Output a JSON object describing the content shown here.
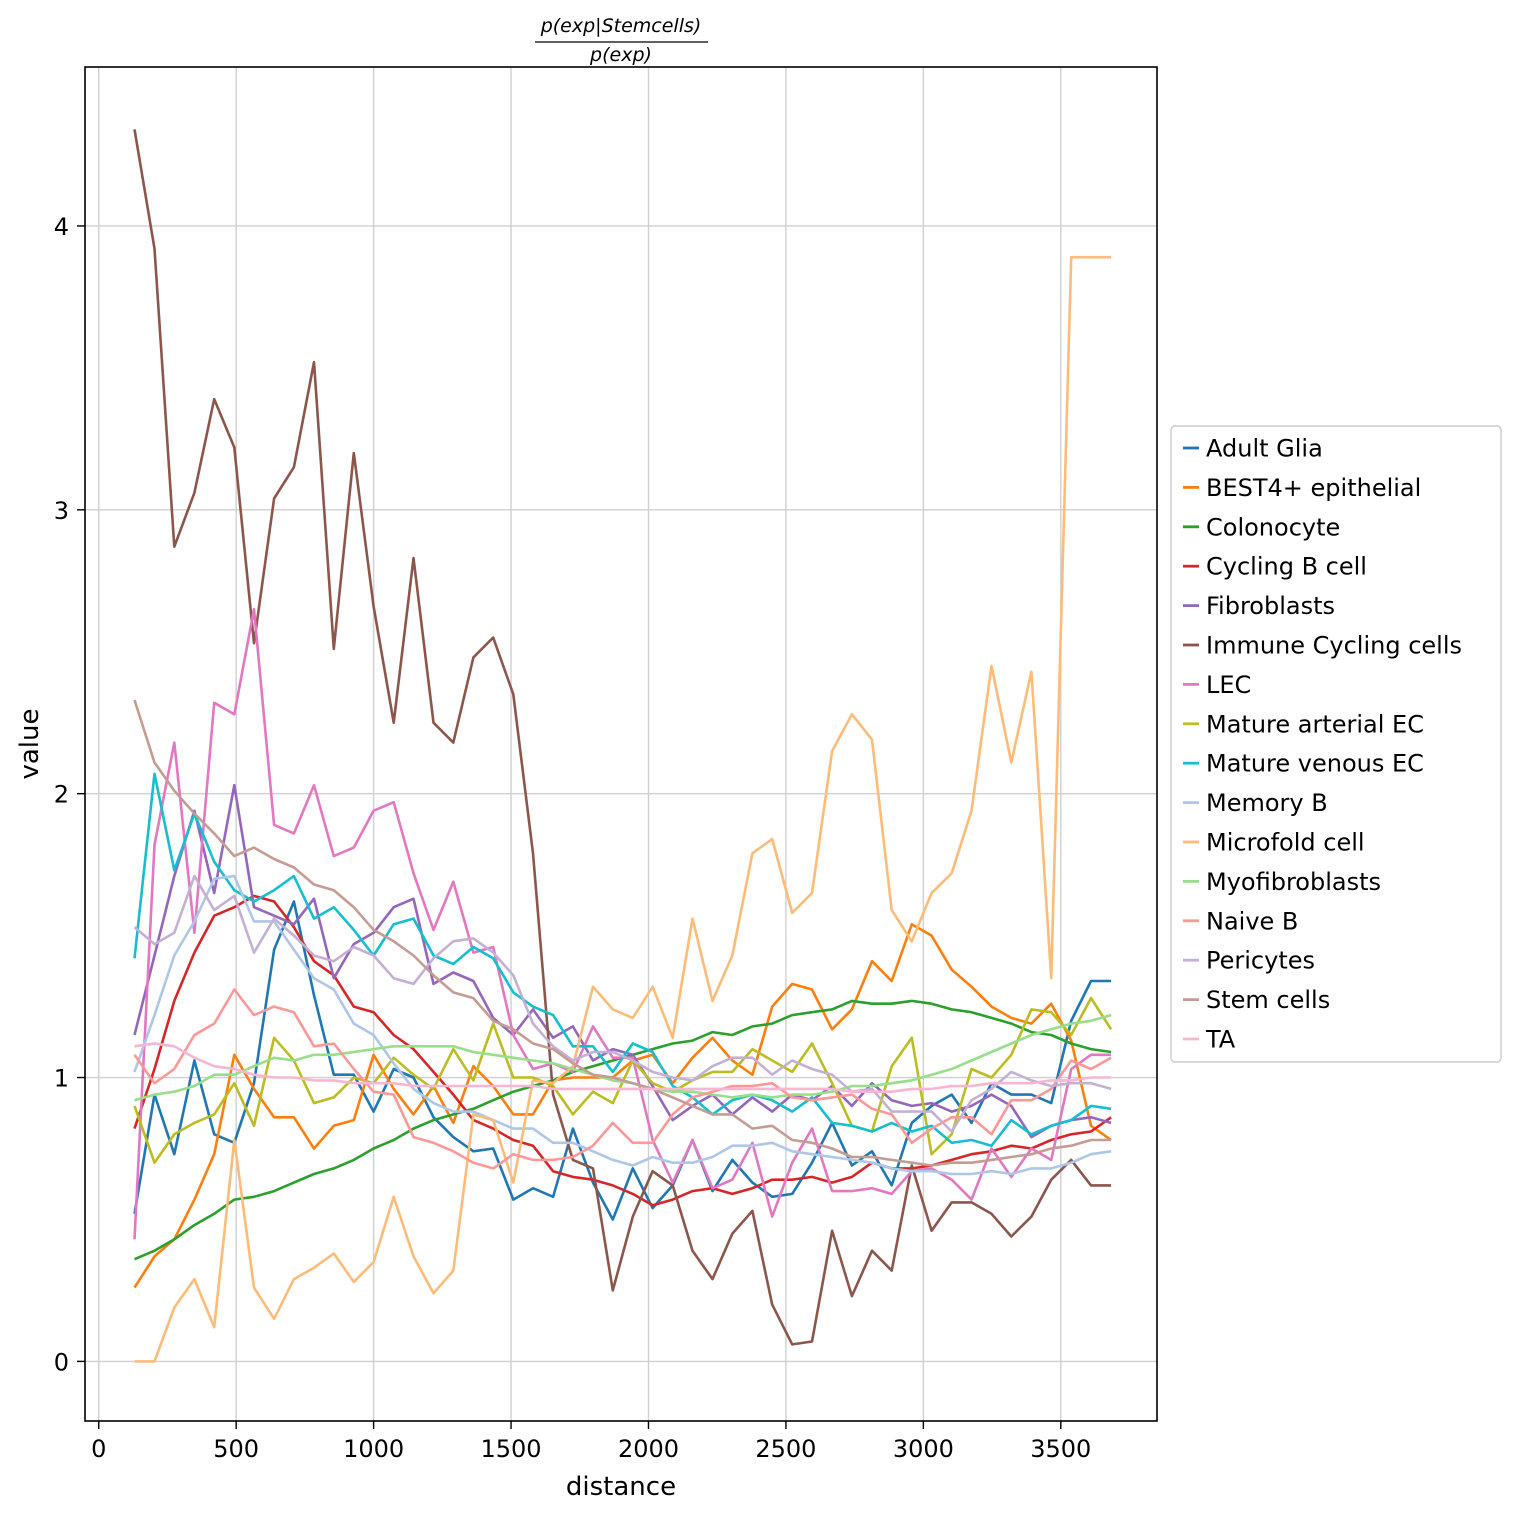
{
  "chart_data": {
    "type": "line",
    "title": {
      "numerator": "p(exp|Stemcells)",
      "denominator": "p(exp)"
    },
    "xlabel": "distance",
    "ylabel": "value",
    "xlim": [
      -50,
      3850
    ],
    "ylim": [
      -0.21,
      4.56
    ],
    "xticks": [
      0,
      500,
      1000,
      1500,
      2000,
      2500,
      3000,
      3500
    ],
    "yticks": [
      0,
      1,
      2,
      3,
      4
    ],
    "grid": true,
    "legend_position": "right",
    "x": [
      130,
      203,
      275,
      348,
      420,
      493,
      565,
      638,
      710,
      783,
      855,
      928,
      1000,
      1073,
      1145,
      1218,
      1290,
      1363,
      1435,
      1508,
      1580,
      1653,
      1725,
      1798,
      1870,
      1943,
      2015,
      2088,
      2160,
      2233,
      2305,
      2378,
      2450,
      2523,
      2595,
      2668,
      2740,
      2813,
      2885,
      2958,
      3030,
      3103,
      3175,
      3248,
      3320,
      3393,
      3465,
      3538,
      3610,
      3683
    ],
    "series": [
      {
        "name": "Adult Glia",
        "color": "#1f77b4",
        "values": [
          0.52,
          0.94,
          0.73,
          1.06,
          0.8,
          0.77,
          0.98,
          1.45,
          1.62,
          1.29,
          1.01,
          1.01,
          0.88,
          1.03,
          1.0,
          0.86,
          0.79,
          0.74,
          0.75,
          0.57,
          0.61,
          0.58,
          0.82,
          0.63,
          0.5,
          0.68,
          0.54,
          0.62,
          0.78,
          0.6,
          0.71,
          0.63,
          0.58,
          0.59,
          0.7,
          0.84,
          0.69,
          0.74,
          0.62,
          0.84,
          0.9,
          0.94,
          0.84,
          0.98,
          0.94,
          0.94,
          0.91,
          1.2,
          1.34,
          1.34
        ]
      },
      {
        "name": "BEST4+ epithelial",
        "color": "#ff7f0e",
        "values": [
          0.26,
          0.37,
          0.43,
          0.57,
          0.73,
          1.08,
          0.96,
          0.86,
          0.86,
          0.75,
          0.83,
          0.85,
          1.08,
          0.96,
          0.87,
          0.97,
          0.84,
          1.04,
          0.97,
          0.87,
          0.87,
          0.99,
          1.0,
          1.0,
          1.0,
          1.06,
          1.08,
          0.98,
          1.07,
          1.14,
          1.06,
          1.01,
          1.25,
          1.33,
          1.31,
          1.17,
          1.24,
          1.41,
          1.34,
          1.54,
          1.5,
          1.38,
          1.32,
          1.25,
          1.21,
          1.19,
          1.26,
          1.13,
          0.83,
          0.78
        ]
      },
      {
        "name": "Colonocyte",
        "color": "#2ca02c",
        "values": [
          0.36,
          0.39,
          0.43,
          0.48,
          0.52,
          0.57,
          0.58,
          0.6,
          0.63,
          0.66,
          0.68,
          0.71,
          0.75,
          0.78,
          0.82,
          0.85,
          0.87,
          0.89,
          0.92,
          0.95,
          0.97,
          0.99,
          1.02,
          1.04,
          1.06,
          1.08,
          1.1,
          1.12,
          1.13,
          1.16,
          1.15,
          1.18,
          1.19,
          1.22,
          1.23,
          1.24,
          1.27,
          1.26,
          1.26,
          1.27,
          1.26,
          1.24,
          1.23,
          1.21,
          1.19,
          1.16,
          1.15,
          1.12,
          1.1,
          1.09
        ]
      },
      {
        "name": "Cycling B cell",
        "color": "#d62728",
        "values": [
          0.82,
          1.03,
          1.27,
          1.44,
          1.57,
          1.6,
          1.64,
          1.62,
          1.53,
          1.41,
          1.36,
          1.25,
          1.23,
          1.15,
          1.1,
          1.02,
          0.94,
          0.85,
          0.82,
          0.78,
          0.76,
          0.67,
          0.65,
          0.64,
          0.62,
          0.59,
          0.55,
          0.57,
          0.6,
          0.61,
          0.59,
          0.61,
          0.64,
          0.64,
          0.65,
          0.63,
          0.65,
          0.7,
          0.68,
          0.68,
          0.69,
          0.71,
          0.73,
          0.74,
          0.76,
          0.75,
          0.78,
          0.8,
          0.81,
          0.86
        ]
      },
      {
        "name": "Fibroblasts",
        "color": "#9467bd",
        "values": [
          1.15,
          1.43,
          1.71,
          1.94,
          1.65,
          2.03,
          1.6,
          1.57,
          1.54,
          1.63,
          1.35,
          1.47,
          1.51,
          1.6,
          1.63,
          1.33,
          1.37,
          1.34,
          1.21,
          1.15,
          1.24,
          1.14,
          1.18,
          1.06,
          1.1,
          1.08,
          0.97,
          0.85,
          0.9,
          0.94,
          0.87,
          0.93,
          0.88,
          0.94,
          0.92,
          0.97,
          0.9,
          0.98,
          0.92,
          0.9,
          0.91,
          0.88,
          0.9,
          0.94,
          0.9,
          0.79,
          0.83,
          0.85,
          0.86,
          0.84
        ]
      },
      {
        "name": "Immune Cycling cells",
        "color": "#8c564b",
        "values": [
          4.34,
          3.92,
          2.87,
          3.06,
          3.39,
          3.22,
          2.53,
          3.04,
          3.15,
          3.52,
          2.51,
          3.2,
          2.66,
          2.25,
          2.83,
          2.25,
          2.18,
          2.48,
          2.55,
          2.35,
          1.79,
          0.94,
          0.71,
          0.68,
          0.25,
          0.51,
          0.67,
          0.62,
          0.39,
          0.29,
          0.45,
          0.53,
          0.2,
          0.06,
          0.07,
          0.46,
          0.23,
          0.39,
          0.32,
          0.69,
          0.46,
          0.56,
          0.56,
          0.52,
          0.44,
          0.51,
          0.64,
          0.71,
          0.62,
          0.62
        ]
      },
      {
        "name": "LEC",
        "color": "#e377c2",
        "values": [
          0.43,
          1.82,
          2.18,
          1.51,
          2.32,
          2.28,
          2.65,
          1.89,
          1.86,
          2.03,
          1.78,
          1.81,
          1.94,
          1.97,
          1.72,
          1.52,
          1.69,
          1.44,
          1.46,
          1.15,
          1.03,
          1.05,
          1.02,
          1.18,
          1.07,
          1.07,
          0.78,
          0.63,
          0.78,
          0.61,
          0.64,
          0.77,
          0.51,
          0.7,
          0.82,
          0.6,
          0.6,
          0.61,
          0.59,
          0.67,
          0.68,
          0.64,
          0.57,
          0.75,
          0.65,
          0.75,
          0.71,
          1.03,
          1.08,
          1.08
        ]
      },
      {
        "name": "Mature arterial EC",
        "color": "#bcbd22",
        "values": [
          0.9,
          0.7,
          0.8,
          0.84,
          0.87,
          0.98,
          0.83,
          1.14,
          1.06,
          0.91,
          0.93,
          1.0,
          0.98,
          1.07,
          1.01,
          0.96,
          1.1,
          0.99,
          1.19,
          1.0,
          1.0,
          0.97,
          0.87,
          0.95,
          0.91,
          1.06,
          0.98,
          0.95,
          0.99,
          1.02,
          1.02,
          1.1,
          1.06,
          1.02,
          1.12,
          0.98,
          0.83,
          0.81,
          1.04,
          1.14,
          0.73,
          0.8,
          1.03,
          1.0,
          1.08,
          1.24,
          1.23,
          1.15,
          1.28,
          1.17
        ]
      },
      {
        "name": "Mature venous EC",
        "color": "#17becf",
        "values": [
          1.42,
          2.07,
          1.73,
          1.93,
          1.76,
          1.66,
          1.62,
          1.66,
          1.71,
          1.56,
          1.6,
          1.52,
          1.43,
          1.54,
          1.56,
          1.43,
          1.4,
          1.46,
          1.42,
          1.3,
          1.25,
          1.22,
          1.11,
          1.11,
          1.02,
          1.12,
          1.09,
          0.97,
          0.93,
          0.87,
          0.92,
          0.94,
          0.92,
          0.88,
          0.93,
          0.84,
          0.83,
          0.81,
          0.84,
          0.81,
          0.83,
          0.77,
          0.78,
          0.76,
          0.85,
          0.8,
          0.83,
          0.85,
          0.9,
          0.89
        ]
      },
      {
        "name": "Memory B",
        "color": "#aec7e8",
        "values": [
          1.02,
          1.22,
          1.43,
          1.55,
          1.7,
          1.71,
          1.55,
          1.55,
          1.45,
          1.35,
          1.31,
          1.19,
          1.15,
          1.05,
          0.96,
          0.91,
          0.88,
          0.88,
          0.85,
          0.82,
          0.82,
          0.77,
          0.77,
          0.74,
          0.71,
          0.69,
          0.72,
          0.7,
          0.7,
          0.72,
          0.76,
          0.76,
          0.77,
          0.74,
          0.73,
          0.72,
          0.71,
          0.7,
          0.68,
          0.67,
          0.67,
          0.66,
          0.66,
          0.67,
          0.66,
          0.68,
          0.68,
          0.7,
          0.73,
          0.74
        ]
      },
      {
        "name": "Microfold cell",
        "color": "#ffbb78",
        "values": [
          0.0,
          0.0,
          0.19,
          0.29,
          0.12,
          0.78,
          0.26,
          0.15,
          0.29,
          0.33,
          0.38,
          0.28,
          0.35,
          0.58,
          0.37,
          0.24,
          0.32,
          0.87,
          0.85,
          0.63,
          0.99,
          0.98,
          1.04,
          1.32,
          1.24,
          1.21,
          1.32,
          1.14,
          1.56,
          1.27,
          1.43,
          1.79,
          1.84,
          1.58,
          1.65,
          2.15,
          2.28,
          2.19,
          1.59,
          1.48,
          1.65,
          1.72,
          1.94,
          2.45,
          2.11,
          2.43,
          1.35,
          3.89,
          3.89,
          3.89
        ]
      },
      {
        "name": "Myofibroblasts",
        "color": "#98df8a",
        "values": [
          0.92,
          0.94,
          0.95,
          0.97,
          1.01,
          1.01,
          1.04,
          1.07,
          1.06,
          1.08,
          1.08,
          1.09,
          1.1,
          1.11,
          1.11,
          1.11,
          1.11,
          1.09,
          1.08,
          1.07,
          1.06,
          1.05,
          1.03,
          1.01,
          0.99,
          0.98,
          0.96,
          0.95,
          0.95,
          0.94,
          0.93,
          0.94,
          0.93,
          0.94,
          0.94,
          0.95,
          0.97,
          0.97,
          0.98,
          0.99,
          1.01,
          1.03,
          1.06,
          1.09,
          1.12,
          1.15,
          1.17,
          1.19,
          1.2,
          1.22
        ]
      },
      {
        "name": "Naive B",
        "color": "#ff9896",
        "values": [
          1.08,
          0.98,
          1.03,
          1.15,
          1.19,
          1.31,
          1.22,
          1.25,
          1.23,
          1.11,
          1.12,
          1.03,
          0.95,
          0.94,
          0.79,
          0.77,
          0.74,
          0.7,
          0.68,
          0.73,
          0.71,
          0.71,
          0.72,
          0.76,
          0.84,
          0.77,
          0.77,
          0.87,
          0.93,
          0.95,
          0.97,
          0.97,
          0.98,
          0.93,
          0.92,
          0.93,
          0.94,
          0.89,
          0.87,
          0.77,
          0.82,
          0.86,
          0.86,
          0.8,
          0.92,
          0.92,
          0.96,
          1.06,
          1.03,
          1.07
        ]
      },
      {
        "name": "Pericytes",
        "color": "#c5b0d5",
        "values": [
          1.53,
          1.47,
          1.51,
          1.71,
          1.59,
          1.64,
          1.44,
          1.56,
          1.5,
          1.43,
          1.41,
          1.46,
          1.43,
          1.35,
          1.33,
          1.42,
          1.48,
          1.49,
          1.44,
          1.36,
          1.19,
          1.11,
          1.06,
          1.09,
          1.09,
          1.06,
          1.02,
          1.0,
          0.99,
          1.04,
          1.07,
          1.07,
          1.01,
          1.06,
          1.03,
          1.01,
          0.95,
          0.96,
          0.88,
          0.88,
          0.88,
          0.81,
          0.92,
          0.96,
          1.02,
          0.99,
          0.97,
          0.98,
          0.98,
          0.96
        ]
      },
      {
        "name": "Stem cells",
        "color": "#c49c94",
        "values": [
          2.33,
          2.11,
          2.01,
          1.93,
          1.86,
          1.78,
          1.81,
          1.77,
          1.74,
          1.68,
          1.66,
          1.6,
          1.52,
          1.48,
          1.43,
          1.36,
          1.3,
          1.28,
          1.2,
          1.17,
          1.12,
          1.1,
          1.05,
          1.01,
          1.0,
          0.98,
          0.96,
          0.93,
          0.9,
          0.87,
          0.87,
          0.82,
          0.83,
          0.78,
          0.77,
          0.75,
          0.72,
          0.72,
          0.71,
          0.7,
          0.69,
          0.7,
          0.7,
          0.71,
          0.72,
          0.73,
          0.75,
          0.76,
          0.78,
          0.78
        ]
      },
      {
        "name": "TA",
        "color": "#f7b6d2",
        "values": [
          1.11,
          1.12,
          1.11,
          1.07,
          1.04,
          1.03,
          1.01,
          1.0,
          1.0,
          0.99,
          0.99,
          0.98,
          0.98,
          0.98,
          0.97,
          0.97,
          0.97,
          0.97,
          0.97,
          0.97,
          0.97,
          0.96,
          0.96,
          0.96,
          0.96,
          0.96,
          0.96,
          0.96,
          0.96,
          0.96,
          0.96,
          0.96,
          0.96,
          0.96,
          0.96,
          0.96,
          0.95,
          0.95,
          0.95,
          0.96,
          0.96,
          0.97,
          0.97,
          0.98,
          0.98,
          0.98,
          0.99,
          0.99,
          1.0,
          1.0
        ]
      }
    ]
  }
}
